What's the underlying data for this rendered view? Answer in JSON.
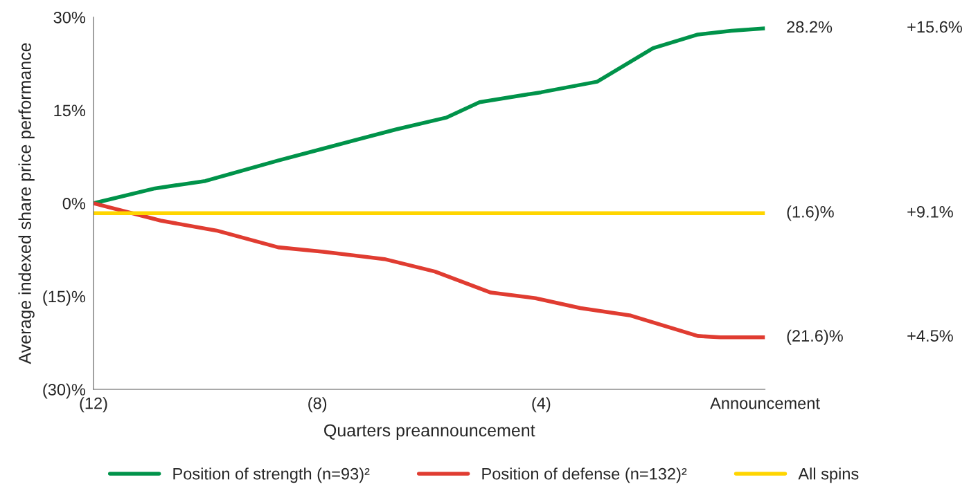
{
  "chart_data": {
    "type": "line",
    "xlabel": "Quarters preannouncement",
    "ylabel": "Average indexed share price performance",
    "xlim": [
      -12,
      0
    ],
    "ylim": [
      -30,
      30
    ],
    "xticks": [
      {
        "value": -12,
        "label": "(12)"
      },
      {
        "value": -8,
        "label": "(8)"
      },
      {
        "value": -4,
        "label": "(4)"
      },
      {
        "value": 0,
        "label": "Announcement"
      }
    ],
    "yticks": [
      {
        "value": 30,
        "label": "30%"
      },
      {
        "value": 15,
        "label": "15%"
      },
      {
        "value": 0,
        "label": "0%"
      },
      {
        "value": -15,
        "label": "(15)%"
      },
      {
        "value": -30,
        "label": "(30)%"
      }
    ],
    "series": [
      {
        "name": "Position of strength (n=93)²",
        "color": "#00934a",
        "x": [
          -12,
          -10.9,
          -10,
          -8.7,
          -7.9,
          -6.6,
          -5.7,
          -5.1,
          -4,
          -3,
          -2,
          -1.2,
          -0.6,
          0
        ],
        "values": [
          0,
          2.4,
          3.6,
          6.9,
          8.8,
          11.9,
          13.8,
          16.3,
          17.9,
          19.6,
          25.0,
          27.2,
          27.8,
          28.2
        ],
        "value_labels": [
          null,
          null,
          null,
          null,
          null,
          null,
          null,
          null,
          null,
          null,
          null,
          null,
          null,
          "28.2%"
        ]
      },
      {
        "name": "Position of defense (n=132)²",
        "color": "#e03c31",
        "x": [
          -12,
          -10.8,
          -9.8,
          -8.7,
          -7.9,
          -6.8,
          -5.9,
          -4.9,
          -4.1,
          -3.3,
          -2.4,
          -1.2,
          -0.8,
          0
        ],
        "values": [
          0,
          -2.8,
          -4.4,
          -7.1,
          -7.8,
          -9.0,
          -11.0,
          -14.4,
          -15.3,
          -16.9,
          -18.1,
          -21.4,
          -21.6,
          -21.6
        ],
        "value_labels": [
          null,
          null,
          null,
          null,
          null,
          null,
          null,
          null,
          null,
          null,
          null,
          null,
          null,
          "(21.6)%"
        ]
      },
      {
        "name": "All spins",
        "color": "#ffd500",
        "x": [
          -12,
          0
        ],
        "values": [
          -1.6,
          -1.6
        ],
        "value_labels": [
          null,
          "(1.6)%"
        ]
      }
    ],
    "annotations": [
      "+15.6%",
      "+4.5%",
      "+9.1%"
    ],
    "legend": "bottom",
    "grid": false
  }
}
